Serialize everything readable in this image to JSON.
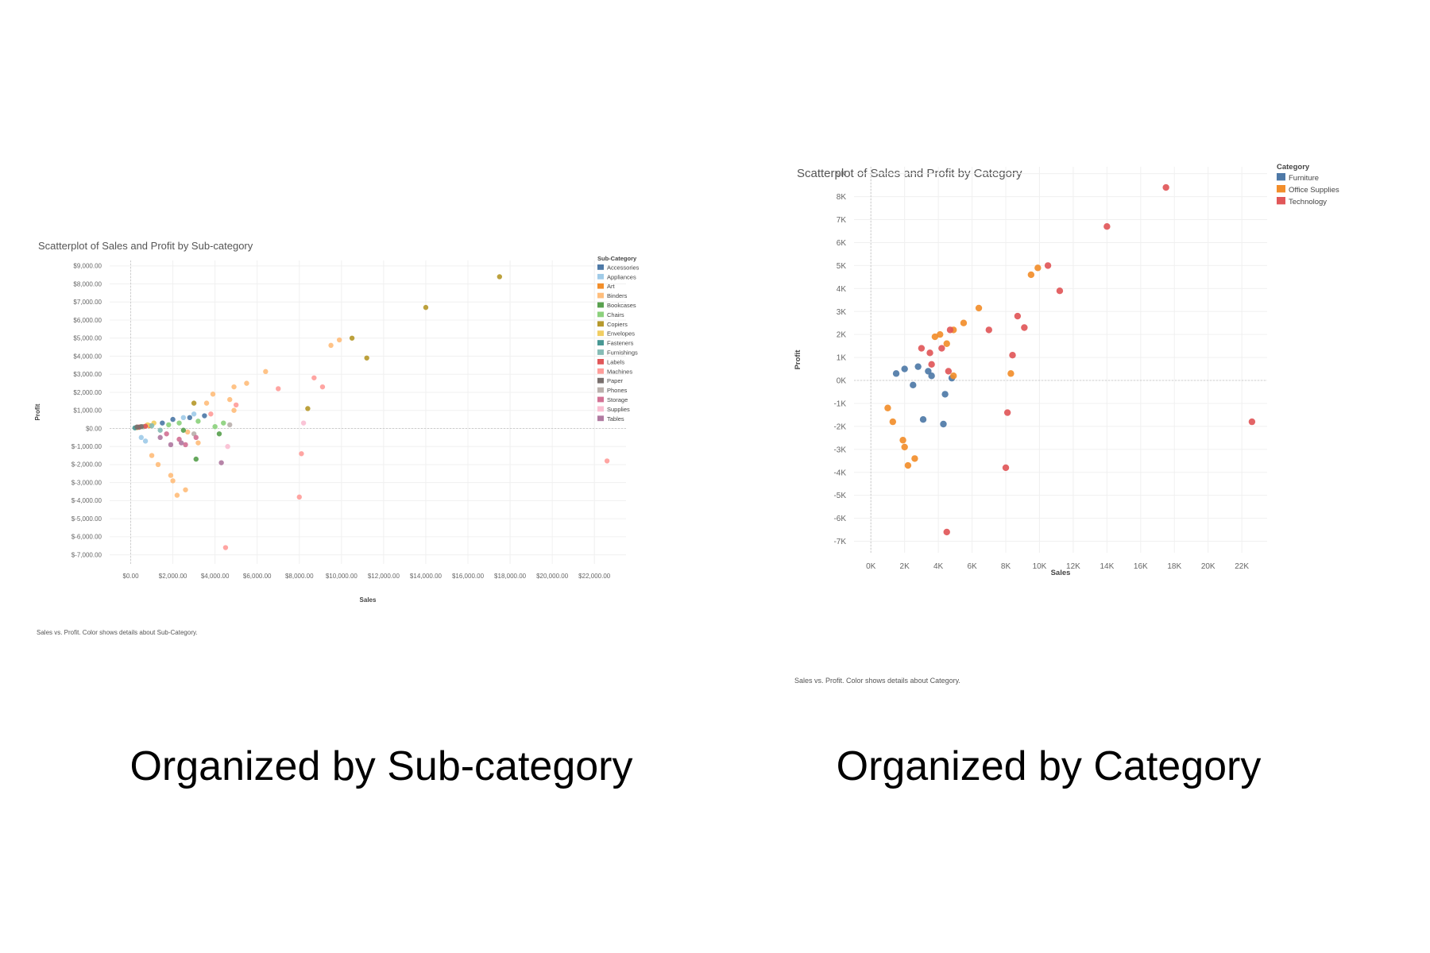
{
  "chart_data": [
    {
      "type": "scatter",
      "title": "Scatterplot of Sales and Profit by Sub-category",
      "xlabel": "Sales",
      "ylabel": "Profit",
      "caption": "Sales vs. Profit.  Color shows details about Sub-Category.",
      "xlim": [
        -1000,
        23500
      ],
      "ylim": [
        -7500,
        9300
      ],
      "x_ticks": [
        0,
        2000,
        4000,
        6000,
        8000,
        10000,
        12000,
        14000,
        16000,
        18000,
        20000,
        22000
      ],
      "x_tick_labels": [
        "$0.00",
        "$2,000.00",
        "$4,000.00",
        "$6,000.00",
        "$8,000.00",
        "$10,000.00",
        "$12,000.00",
        "$14,000.00",
        "$16,000.00",
        "$18,000.00",
        "$20,000.00",
        "$22,000.00"
      ],
      "y_ticks": [
        9000,
        8000,
        7000,
        6000,
        5000,
        4000,
        3000,
        2000,
        1000,
        0,
        -1000,
        -2000,
        -3000,
        -4000,
        -5000,
        -6000,
        -7000
      ],
      "y_tick_labels": [
        "$9,000.00",
        "$8,000.00",
        "$7,000.00",
        "$6,000.00",
        "$5,000.00",
        "$4,000.00",
        "$3,000.00",
        "$2,000.00",
        "$1,000.00",
        "$0.00",
        "$-1,000.00",
        "$-2,000.00",
        "$-3,000.00",
        "$-4,000.00",
        "$-5,000.00",
        "$-6,000.00",
        "$-7,000.00"
      ],
      "grid": true,
      "legend_position": "right",
      "legend_title": "Sub-Category",
      "series": [
        {
          "name": "Accessories",
          "color": "#4e79a7",
          "points": [
            [
              1500,
              300
            ],
            [
              2000,
              500
            ],
            [
              2800,
              600
            ],
            [
              3500,
              700
            ]
          ]
        },
        {
          "name": "Appliances",
          "color": "#a0cbe8",
          "points": [
            [
              500,
              -500
            ],
            [
              700,
              -700
            ],
            [
              2500,
              600
            ],
            [
              3000,
              800
            ]
          ]
        },
        {
          "name": "Art",
          "color": "#f28e2b",
          "points": [
            [
              300,
              50
            ],
            [
              600,
              100
            ],
            [
              900,
              150
            ]
          ]
        },
        {
          "name": "Binders",
          "color": "#ffbe7d",
          "points": [
            [
              9500,
              4600
            ],
            [
              9900,
              4900
            ],
            [
              6400,
              3150
            ],
            [
              5500,
              2500
            ],
            [
              4900,
              2300
            ],
            [
              3600,
              1400
            ],
            [
              3900,
              1900
            ],
            [
              4700,
              1600
            ],
            [
              4900,
              1000
            ],
            [
              1000,
              -1500
            ],
            [
              1300,
              -2000
            ],
            [
              1900,
              -2600
            ],
            [
              2000,
              -2900
            ],
            [
              2200,
              -3700
            ],
            [
              2600,
              -3400
            ],
            [
              3200,
              -800
            ],
            [
              2700,
              -200
            ]
          ]
        },
        {
          "name": "Bookcases",
          "color": "#59a14f",
          "points": [
            [
              3100,
              -1700
            ],
            [
              4200,
              -300
            ],
            [
              2500,
              -100
            ]
          ]
        },
        {
          "name": "Chairs",
          "color": "#8cd17d",
          "points": [
            [
              1800,
              200
            ],
            [
              2300,
              300
            ],
            [
              3200,
              400
            ],
            [
              4000,
              100
            ],
            [
              4400,
              300
            ]
          ]
        },
        {
          "name": "Copiers",
          "color": "#b6992d",
          "points": [
            [
              17500,
              8400
            ],
            [
              14000,
              6700
            ],
            [
              10500,
              5000
            ],
            [
              11200,
              3900
            ],
            [
              8400,
              1100
            ],
            [
              3000,
              1400
            ]
          ]
        },
        {
          "name": "Envelopes",
          "color": "#f1ce63",
          "points": [
            [
              800,
              200
            ],
            [
              1100,
              300
            ]
          ]
        },
        {
          "name": "Fasteners",
          "color": "#499894",
          "points": [
            [
              200,
              30
            ],
            [
              400,
              60
            ]
          ]
        },
        {
          "name": "Furnishings",
          "color": "#86bcb6",
          "points": [
            [
              600,
              100
            ],
            [
              1000,
              150
            ],
            [
              1400,
              -100
            ]
          ]
        },
        {
          "name": "Labels",
          "color": "#e15759",
          "points": [
            [
              400,
              80
            ],
            [
              700,
              120
            ]
          ]
        },
        {
          "name": "Machines",
          "color": "#ff9d9a",
          "points": [
            [
              22600,
              -1800
            ],
            [
              8000,
              -3800
            ],
            [
              8100,
              -1400
            ],
            [
              4500,
              -6600
            ],
            [
              7000,
              2200
            ],
            [
              8700,
              2800
            ],
            [
              9100,
              2300
            ],
            [
              5000,
              1300
            ],
            [
              3800,
              800
            ]
          ]
        },
        {
          "name": "Paper",
          "color": "#79706e",
          "points": [
            [
              300,
              80
            ],
            [
              500,
              100
            ]
          ]
        },
        {
          "name": "Phones",
          "color": "#bab0ac",
          "points": [
            [
              4700,
              200
            ],
            [
              3000,
              -300
            ]
          ]
        },
        {
          "name": "Storage",
          "color": "#d37295",
          "points": [
            [
              1700,
              -300
            ],
            [
              2300,
              -600
            ],
            [
              3100,
              -500
            ],
            [
              2600,
              -900
            ]
          ]
        },
        {
          "name": "Supplies",
          "color": "#fabfd2",
          "points": [
            [
              8200,
              300
            ],
            [
              4600,
              -1000
            ]
          ]
        },
        {
          "name": "Tables",
          "color": "#b07aa1",
          "points": [
            [
              4300,
              -1900
            ],
            [
              2400,
              -800
            ],
            [
              1900,
              -900
            ],
            [
              1400,
              -500
            ]
          ]
        }
      ]
    },
    {
      "type": "scatter",
      "title": "Scatterplot of Sales and Profit by Category",
      "xlabel": "Sales",
      "ylabel": "Profit",
      "caption": "Sales vs. Profit.  Color shows details about Category.",
      "xlim": [
        -1000,
        23500
      ],
      "ylim": [
        -7500,
        9300
      ],
      "x_ticks": [
        0,
        2000,
        4000,
        6000,
        8000,
        10000,
        12000,
        14000,
        16000,
        18000,
        20000,
        22000
      ],
      "x_tick_labels": [
        "0K",
        "2K",
        "4K",
        "6K",
        "8K",
        "10K",
        "12K",
        "14K",
        "16K",
        "18K",
        "20K",
        "22K"
      ],
      "y_ticks": [
        9000,
        8000,
        7000,
        6000,
        5000,
        4000,
        3000,
        2000,
        1000,
        0,
        -1000,
        -2000,
        -3000,
        -4000,
        -5000,
        -6000,
        -7000
      ],
      "y_tick_labels": [
        "9K",
        "8K",
        "7K",
        "6K",
        "5K",
        "4K",
        "3K",
        "2K",
        "1K",
        "0K",
        "-1K",
        "-2K",
        "-3K",
        "-4K",
        "-5K",
        "-6K",
        "-7K"
      ],
      "grid": true,
      "legend_position": "right",
      "legend_title": "Category",
      "series": [
        {
          "name": "Furniture",
          "color": "#4e79a7",
          "points": [
            [
              1500,
              300
            ],
            [
              2000,
              500
            ],
            [
              2800,
              600
            ],
            [
              3100,
              -1700
            ],
            [
              4300,
              -1900
            ],
            [
              4400,
              -600
            ],
            [
              2500,
              -200
            ],
            [
              3600,
              200
            ],
            [
              4800,
              100
            ],
            [
              3400,
              400
            ]
          ]
        },
        {
          "name": "Office Supplies",
          "color": "#f28e2b",
          "points": [
            [
              9500,
              4600
            ],
            [
              9900,
              4900
            ],
            [
              6400,
              3150
            ],
            [
              5500,
              2500
            ],
            [
              4900,
              2200
            ],
            [
              4500,
              1600
            ],
            [
              3800,
              1900
            ],
            [
              4100,
              2000
            ],
            [
              8300,
              300
            ],
            [
              4900,
              200
            ],
            [
              1000,
              -1200
            ],
            [
              1300,
              -1800
            ],
            [
              1900,
              -2600
            ],
            [
              2000,
              -2900
            ],
            [
              2200,
              -3700
            ],
            [
              2600,
              -3400
            ]
          ]
        },
        {
          "name": "Technology",
          "color": "#e15759",
          "points": [
            [
              17500,
              8400
            ],
            [
              14000,
              6700
            ],
            [
              10500,
              5000
            ],
            [
              11200,
              3900
            ],
            [
              22600,
              -1800
            ],
            [
              8000,
              -3800
            ],
            [
              8100,
              -1400
            ],
            [
              4500,
              -6600
            ],
            [
              7000,
              2200
            ],
            [
              8700,
              2800
            ],
            [
              9100,
              2300
            ],
            [
              8400,
              1100
            ],
            [
              4700,
              2200
            ],
            [
              4200,
              1400
            ],
            [
              3000,
              1400
            ],
            [
              3600,
              700
            ],
            [
              4600,
              400
            ],
            [
              3500,
              1200
            ]
          ]
        }
      ]
    }
  ],
  "labels": {
    "left": "Organized by Sub-category",
    "right": "Organized by Category"
  }
}
